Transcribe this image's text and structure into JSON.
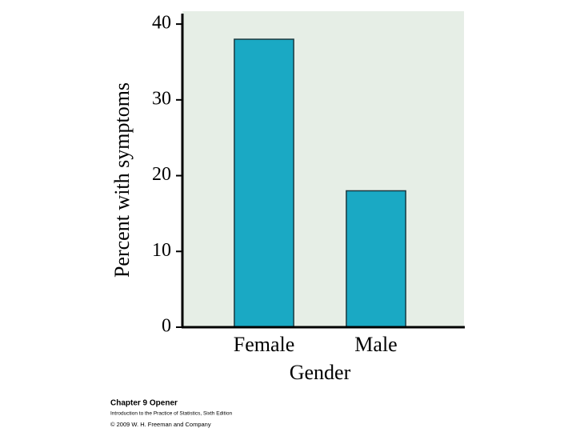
{
  "chart_data": {
    "type": "bar",
    "x_label": "Gender",
    "y_label": "Percent with symptoms",
    "categories": [
      "Female",
      "Male"
    ],
    "values": [
      38,
      18
    ],
    "color": "#1aa9c4",
    "ylim": [
      0,
      41.7
    ],
    "yticks": [
      0,
      10,
      20,
      30,
      40
    ],
    "grid": false
  },
  "footer": {
    "heading": "Chapter 9 Opener",
    "book": "Introduction to the Practice of Statistics, Sixth Edition",
    "copyright": "© 2009 W. H. Freeman and Company"
  }
}
